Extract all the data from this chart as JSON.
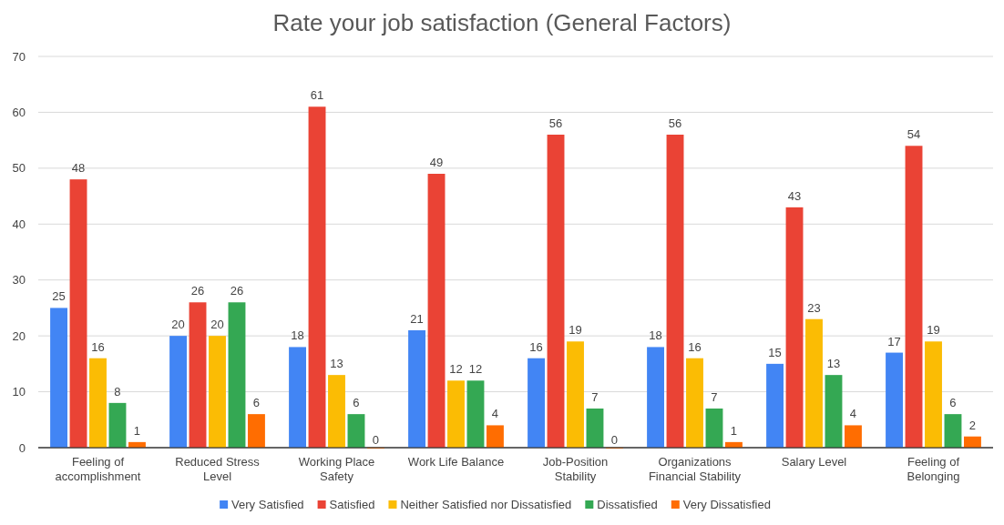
{
  "chart_data": {
    "type": "bar",
    "title": "Rate your job satisfaction (General Factors)",
    "categories": [
      "Feeling of accomplishment",
      "Reduced Stress Level",
      "Working Place Safety",
      "Work Life Balance",
      "Job-Position Stability",
      "Organizations Financial Stability",
      "Salary Level",
      "Feeling of Belonging"
    ],
    "series": [
      {
        "name": "Very Satisfied",
        "color": "#4285f4",
        "values": [
          25,
          20,
          18,
          21,
          16,
          18,
          15,
          17
        ]
      },
      {
        "name": "Satisfied",
        "color": "#ea4335",
        "values": [
          48,
          26,
          61,
          49,
          56,
          56,
          43,
          54
        ]
      },
      {
        "name": "Neither Satisfied nor Dissatisfied",
        "color": "#fbbc04",
        "values": [
          16,
          20,
          13,
          12,
          19,
          16,
          23,
          19
        ]
      },
      {
        "name": "Dissatisfied",
        "color": "#34a853",
        "values": [
          8,
          26,
          6,
          12,
          7,
          7,
          13,
          6
        ]
      },
      {
        "name": "Very Dissatisfied",
        "color": "#ff6d01",
        "values": [
          1,
          6,
          0,
          4,
          0,
          1,
          4,
          2
        ]
      }
    ],
    "ylim": [
      0,
      70
    ],
    "yticks": [
      0,
      10,
      20,
      30,
      40,
      50,
      60,
      70
    ],
    "grid": "y",
    "legend": "bottom",
    "data_labels": true
  }
}
